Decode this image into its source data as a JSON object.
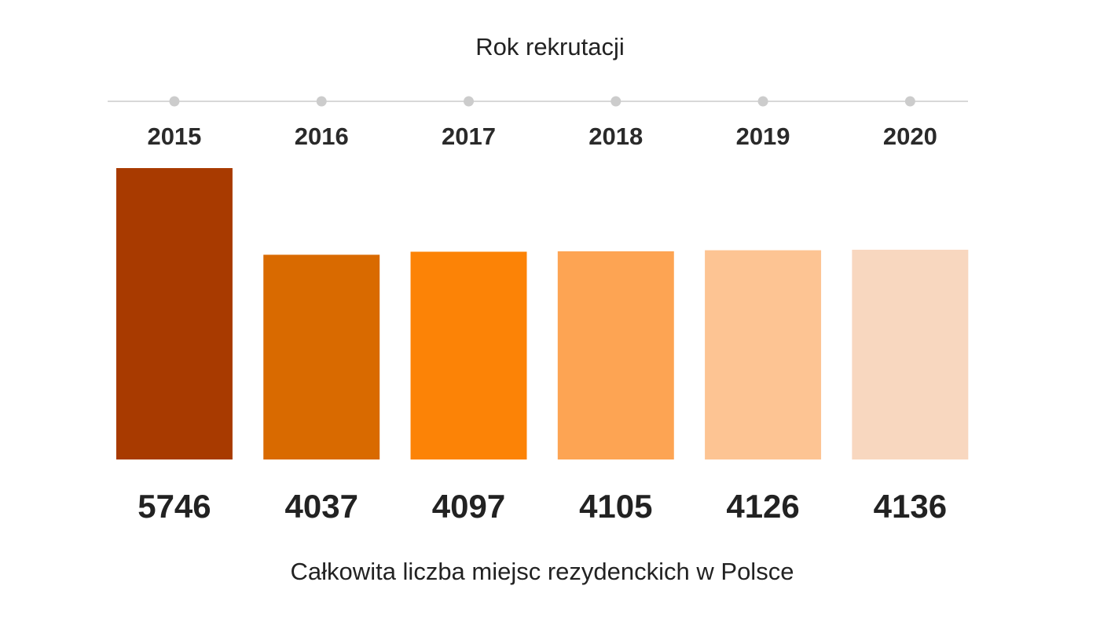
{
  "chart_data": {
    "type": "bar",
    "xlabel": "Rok rekrutacji",
    "ylabel": "Całkowita liczba miejsc rezydenckich w Polsce",
    "categories": [
      "2015",
      "2016",
      "2017",
      "2018",
      "2019",
      "2020"
    ],
    "values": [
      5746,
      4037,
      4097,
      4105,
      4126,
      4136
    ],
    "colors": [
      "#a83a00",
      "#d96a00",
      "#fc8306",
      "#fda453",
      "#fdc493",
      "#f8d7bf"
    ]
  }
}
